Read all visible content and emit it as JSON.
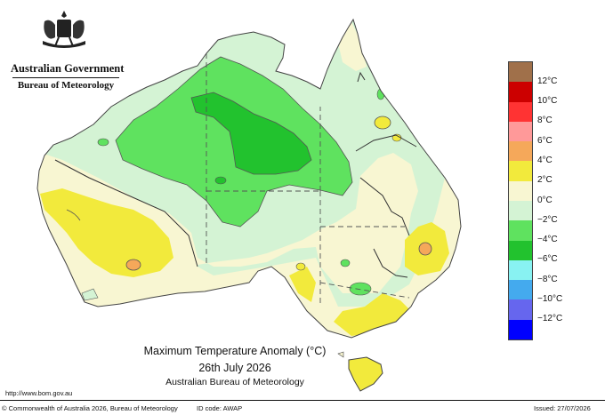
{
  "header": {
    "government": "Australian Government",
    "bureau": "Bureau of Meteorology"
  },
  "title": {
    "line1": "Maximum Temperature Anomaly (°C)",
    "line2": "26th July 2026",
    "line3": "Australian Bureau of Meteorology"
  },
  "legend": {
    "labels": [
      "12°C",
      "10°C",
      "8°C",
      "6°C",
      "4°C",
      "2°C",
      "0°C",
      "−2°C",
      "−4°C",
      "−6°C",
      "−8°C",
      "−10°C",
      "−12°C"
    ],
    "colors": [
      "#a0704a",
      "#cc0000",
      "#ff3333",
      "#ff9999",
      "#f5a85a",
      "#f2ea3c",
      "#f8f6d2",
      "#d4f3d4",
      "#5fe25f",
      "#22c22e",
      "#88f2f2",
      "#44aaee",
      "#6666ee",
      "#0000ff"
    ]
  },
  "footer": {
    "url": "http://www.bom.gov.au",
    "copyright": "© Commonwealth of Australia 2026, Bureau of Meteorology",
    "id_code": "ID code: AWAP",
    "issued": "Issued: 27/07/2026"
  },
  "map_colors": {
    "land_light_green": "#d4f3d4",
    "green": "#5fe25f",
    "dark_green": "#22c22e",
    "cream": "#f8f6d2",
    "yellow": "#f2ea3c",
    "orange": "#f5a85a"
  }
}
